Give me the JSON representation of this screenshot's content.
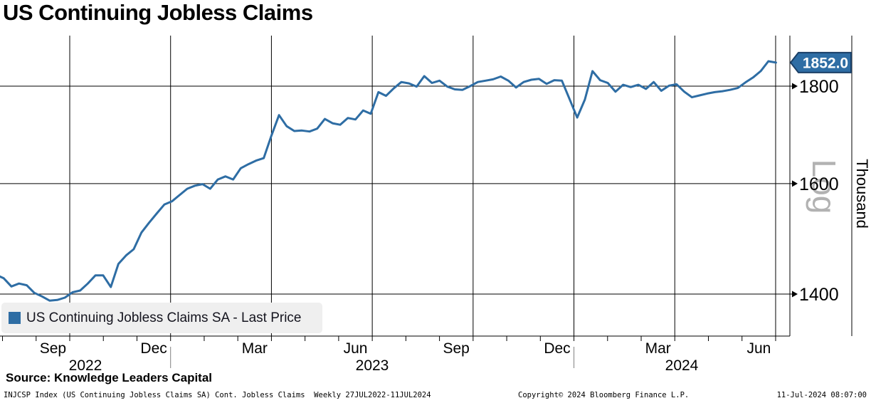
{
  "title": "US Continuing Jobless Claims",
  "chart_data": {
    "type": "line",
    "title": "US Continuing Jobless Claims",
    "series_name": "US Continuing Jobless Claims SA - Last Price",
    "frequency": "Weekly",
    "date_range": "27JUL2022-11JUL2024",
    "start_date": "2022-07-27",
    "end_date": "2024-07-11",
    "y_scale": "log",
    "scale_label": "Log",
    "unit_label": "Thousand",
    "y_ticks": [
      1400,
      1600,
      1800
    ],
    "last_price": 1852.0,
    "last_price_label": "1852.0",
    "line_color": "#2e6da4",
    "x_gridline_dates": [
      "2022-10-01",
      "2023-01-01",
      "2023-04-01",
      "2023-07-01",
      "2023-10-01",
      "2024-01-01",
      "2024-04-01",
      "2024-07-01"
    ],
    "x_month_labels": [
      "Sep",
      "Dec",
      "Mar",
      "Jun",
      "Sep",
      "Dec",
      "Mar",
      "Jun"
    ],
    "x_year_labels": [
      "2022",
      "2023",
      "2024"
    ],
    "values": [
      1433,
      1427,
      1413,
      1418,
      1415,
      1402,
      1396,
      1389,
      1390,
      1394,
      1403,
      1406,
      1418,
      1432,
      1432,
      1412,
      1452,
      1467,
      1478,
      1508,
      1526,
      1543,
      1560,
      1566,
      1578,
      1590,
      1596,
      1599,
      1590,
      1608,
      1614,
      1608,
      1630,
      1638,
      1645,
      1650,
      1695,
      1738,
      1715,
      1705,
      1706,
      1704,
      1710,
      1730,
      1721,
      1718,
      1732,
      1729,
      1748,
      1741,
      1787,
      1779,
      1795,
      1809,
      1806,
      1799,
      1822,
      1807,
      1812,
      1799,
      1793,
      1792,
      1800,
      1809,
      1812,
      1815,
      1821,
      1812,
      1797,
      1809,
      1814,
      1816,
      1805,
      1813,
      1812,
      1772,
      1733,
      1771,
      1833,
      1813,
      1807,
      1788,
      1803,
      1798,
      1803,
      1794,
      1809,
      1790,
      1801,
      1804,
      1788,
      1776,
      1780,
      1784,
      1787,
      1789,
      1792,
      1796,
      1808,
      1819,
      1833,
      1855,
      1852
    ]
  },
  "legend": {
    "label": "US Continuing Jobless Claims SA - Last Price",
    "swatch_color": "#2e6da4"
  },
  "source_line": "Source: Knowledge Leaders Capital",
  "footer": {
    "left": "INJCSP Index (US Continuing Jobless Claims SA) Cont. Jobless Claims  Weekly 27JUL2022-11JUL2024",
    "center": "Copyright© 2024 Bloomberg Finance L.P.",
    "right": "11-Jul-2024 08:07:00"
  },
  "colors": {
    "accent": "#2e6da4",
    "tag_border": "#1a3f66",
    "grid": "#000000",
    "legend_bg": "#efefef",
    "log_watermark": "#b2b2b2",
    "year_separator": "#808080"
  }
}
